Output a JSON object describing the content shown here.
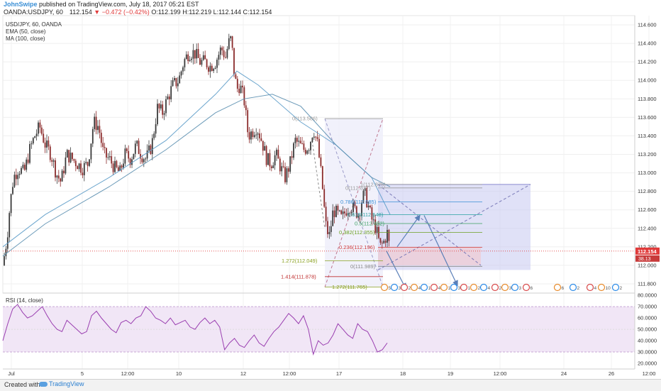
{
  "header": {
    "author": "JohnSwipe",
    "published": "published on TradingView.com, July 18, 2017 05:21 EST",
    "symbol": "OANDA:USDJPY, 60",
    "last": "112.154",
    "change": "−0.472 (−0.42%)",
    "open": "O:112.199",
    "high": "H:112.219",
    "low": "L:112.144",
    "close": "C:112.154"
  },
  "legend": {
    "title": "USD/JPY, 60, OANDA",
    "ema": "EMA (50, close)",
    "ma": "MA (100, close)",
    "rsi": "RSI (14, close)"
  },
  "footer": {
    "created_with": "Created with",
    "brand": "TradingView"
  },
  "colors": {
    "up_candle": "#3a3a3a",
    "down_candle": "#8b2b2b",
    "ema": "#5b9bc8",
    "ma": "#5b8fb0",
    "rsi_line": "#9a3fb0",
    "rsi_band": "#f1e6f6",
    "price_label": "#e03a3a",
    "long_box": "#c7c8f0",
    "short_box": "#f2c6cc"
  },
  "chart_data": {
    "type": "candlestick",
    "title": "USD/JPY, 60, OANDA",
    "price_axis": {
      "ylim": [
        111.7,
        114.7
      ],
      "ticks": [
        "114.600",
        "114.400",
        "114.200",
        "114.000",
        "113.800",
        "113.600",
        "113.400",
        "113.200",
        "113.000",
        "112.800",
        "112.600",
        "112.400",
        "112.200",
        "112.000",
        "111.800"
      ]
    },
    "rsi_axis": {
      "ylim": [
        15,
        82
      ],
      "ticks": [
        "80.0000",
        "70.0000",
        "60.0000",
        "50.0000",
        "40.0000",
        "30.0000",
        "20.0000"
      ],
      "overbought": 70,
      "oversold": 30
    },
    "time_axis": {
      "ticks": [
        "Jul",
        "5",
        "12:00",
        "10",
        "12",
        "12:00",
        "17",
        "18",
        "19",
        "12:00",
        "24",
        "26",
        "12:00"
      ]
    },
    "current_price": "112.154",
    "current_rsi": "38.13",
    "price_path": [
      [
        0,
        112.0
      ],
      [
        6,
        112.3
      ],
      [
        10,
        112.65
      ],
      [
        15,
        112.95
      ],
      [
        22,
        113.05
      ],
      [
        30,
        113.0
      ],
      [
        38,
        113.25
      ],
      [
        45,
        113.4
      ],
      [
        52,
        113.5
      ],
      [
        60,
        113.3
      ],
      [
        68,
        113.2
      ],
      [
        75,
        113.0
      ],
      [
        82,
        112.9
      ],
      [
        90,
        113.2
      ],
      [
        98,
        113.15
      ],
      [
        105,
        113.1
      ],
      [
        112,
        113.05
      ],
      [
        120,
        113.1
      ],
      [
        128,
        113.55
      ],
      [
        135,
        113.5
      ],
      [
        142,
        113.2
      ],
      [
        150,
        113.15
      ],
      [
        158,
        113.05
      ],
      [
        165,
        113.0
      ],
      [
        172,
        113.2
      ],
      [
        180,
        113.15
      ],
      [
        188,
        113.3
      ],
      [
        195,
        113.2
      ],
      [
        202,
        113.15
      ],
      [
        210,
        113.3
      ],
      [
        218,
        113.7
      ],
      [
        225,
        113.65
      ],
      [
        232,
        113.8
      ],
      [
        240,
        113.95
      ],
      [
        248,
        114.0
      ],
      [
        255,
        114.2
      ],
      [
        262,
        114.3
      ],
      [
        270,
        114.3
      ],
      [
        278,
        114.2
      ],
      [
        285,
        114.2
      ],
      [
        292,
        114.15
      ],
      [
        300,
        114.2
      ],
      [
        308,
        114.35
      ],
      [
        314,
        114.25
      ],
      [
        318,
        114.4
      ],
      [
        322,
        114.45
      ],
      [
        326,
        114.1
      ],
      [
        330,
        113.9
      ],
      [
        334,
        113.95
      ],
      [
        340,
        113.8
      ],
      [
        346,
        113.4
      ],
      [
        352,
        113.45
      ],
      [
        358,
        113.5
      ],
      [
        365,
        113.35
      ],
      [
        372,
        113.15
      ],
      [
        378,
        113.1
      ],
      [
        385,
        113.2
      ],
      [
        392,
        113.05
      ],
      [
        398,
        112.95
      ],
      [
        405,
        113.1
      ],
      [
        412,
        113.35
      ],
      [
        418,
        113.3
      ],
      [
        425,
        113.25
      ],
      [
        432,
        113.3
      ],
      [
        438,
        113.48
      ],
      [
        444,
        113.3
      ],
      [
        450,
        112.9
      ],
      [
        455,
        112.45
      ],
      [
        460,
        112.3
      ],
      [
        466,
        112.6
      ],
      [
        472,
        112.55
      ],
      [
        478,
        112.5
      ],
      [
        484,
        112.6
      ],
      [
        490,
        112.65
      ],
      [
        496,
        112.6
      ],
      [
        502,
        112.55
      ],
      [
        506,
        112.7
      ],
      [
        510,
        112.78
      ],
      [
        515,
        112.65
      ],
      [
        520,
        112.5
      ],
      [
        526,
        112.4
      ],
      [
        532,
        112.2
      ],
      [
        537,
        112.25
      ],
      [
        542,
        112.35
      ],
      [
        546,
        112.154
      ]
    ],
    "series": [
      {
        "name": "EMA (50, close)",
        "points": [
          [
            0,
            112.2
          ],
          [
            60,
            112.55
          ],
          [
            150,
            112.95
          ],
          [
            230,
            113.35
          ],
          [
            300,
            113.85
          ],
          [
            330,
            114.1
          ],
          [
            360,
            113.95
          ],
          [
            420,
            113.55
          ],
          [
            470,
            113.3
          ],
          [
            520,
            112.95
          ],
          [
            546,
            112.55
          ]
        ]
      },
      {
        "name": "MA (100, close)",
        "points": [
          [
            0,
            112.1
          ],
          [
            60,
            112.45
          ],
          [
            150,
            112.85
          ],
          [
            230,
            113.25
          ],
          [
            300,
            113.65
          ],
          [
            340,
            113.8
          ],
          [
            380,
            113.85
          ],
          [
            420,
            113.72
          ],
          [
            470,
            113.3
          ],
          [
            520,
            112.95
          ],
          [
            546,
            112.85
          ]
        ]
      }
    ],
    "rsi_values": [
      40,
      55,
      68,
      72,
      65,
      60,
      62,
      66,
      70,
      62,
      55,
      50,
      48,
      58,
      54,
      50,
      46,
      48,
      62,
      66,
      60,
      55,
      50,
      47,
      56,
      58,
      55,
      60,
      62,
      70,
      66,
      60,
      58,
      55,
      60,
      54,
      56,
      58,
      52,
      50,
      56,
      60,
      55,
      58,
      52,
      32,
      38,
      42,
      36,
      34,
      40,
      45,
      38,
      35,
      42,
      48,
      52,
      58,
      64,
      60,
      55,
      62,
      50,
      28,
      40,
      36,
      38,
      45,
      55,
      50,
      45,
      42,
      55,
      50,
      48,
      40,
      30,
      32,
      38
    ],
    "fibonacci": {
      "levels": [
        {
          "label": "0(113.586)",
          "value": 113.586
        },
        {
          "label": "1(112.875)",
          "value": 112.875
        },
        {
          "label": "0(112.837)",
          "value": 112.837
        },
        {
          "label": "0.786(112.685)",
          "value": 112.685
        },
        {
          "label": "0.618(112.548)",
          "value": 112.548
        },
        {
          "label": "0.5(112.452)",
          "value": 112.452
        },
        {
          "label": "0.382(112.355)",
          "value": 112.355
        },
        {
          "label": "0.236(112.196)",
          "value": 112.196
        },
        {
          "label": "1.272(112.049)",
          "value": 112.049
        },
        {
          "label": "0(111.989)",
          "value": 111.989
        },
        {
          "label": "1.414(111.878)",
          "value": 111.878
        },
        {
          "label": "1.272(111.765)",
          "value": 111.765
        }
      ]
    },
    "event_markers": [
      "5",
      "3",
      "2",
      "4",
      "1",
      "4",
      "1",
      "3",
      "1",
      "2",
      "4",
      "2",
      "3",
      "3",
      "6",
      "6",
      "2",
      "4",
      "10",
      "2"
    ]
  }
}
